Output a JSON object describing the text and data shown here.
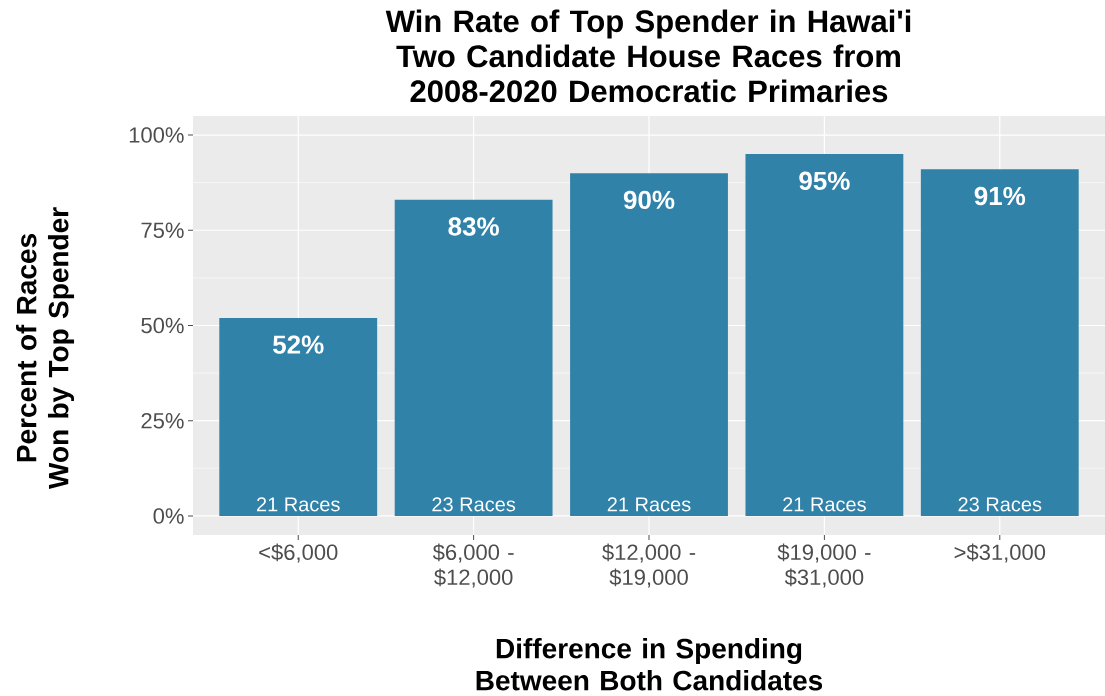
{
  "chart_data": {
    "type": "bar",
    "title": "Win Rate of Top Spender in Hawai'i Two Candidate House Races from 2008-2020 Democratic Primaries",
    "xlabel": "Difference in Spending Between Both Candidates",
    "ylabel": "Percent of Races Won by Top Spender",
    "categories": [
      "<$6,000",
      "$6,000 - $12,000",
      "$12,000 - $19,000",
      "$19,000 - $31,000",
      ">$31,000"
    ],
    "values": [
      52,
      83,
      90,
      95,
      91
    ],
    "value_labels": [
      "52%",
      "83%",
      "90%",
      "95%",
      "91%"
    ],
    "color": "#3182a9",
    "ylim": [
      -5,
      105
    ],
    "yticks": [
      {
        "value": 0,
        "label": "0%"
      },
      {
        "value": 25,
        "label": "25%"
      },
      {
        "value": 50,
        "label": "50%"
      },
      {
        "value": 75,
        "label": "75%"
      },
      {
        "value": 100,
        "label": "100%"
      }
    ],
    "grid": true,
    "annotations": [
      {
        "text": "21 Races",
        "x": "<$6,000",
        "y": 0
      },
      {
        "text": "23 Races",
        "x": "$6,000 - $12,000",
        "y": 0
      },
      {
        "text": "21 Races",
        "x": "$12,000 - $19,000",
        "y": 0
      },
      {
        "text": "21 Races",
        "x": "$19,000 - $31,000",
        "y": 0
      },
      {
        "text": "23 Races",
        "x": ">$31,000",
        "y": 0
      }
    ]
  }
}
